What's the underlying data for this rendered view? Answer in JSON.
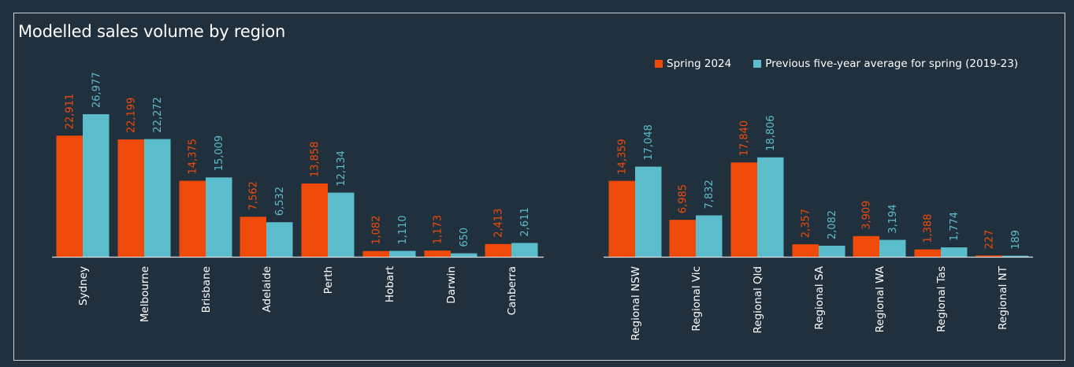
{
  "title": "Modelled sales volume by region",
  "colors": {
    "background": "#21303d",
    "spring_2024": "#f04a0a",
    "five_year_avg": "#5bbccc",
    "axis": "#dfe4e8",
    "text": "#ffffff"
  },
  "legend": {
    "spring_2024": "Spring 2024",
    "five_year_avg": "Previous five-year average for spring (2019-23)"
  },
  "chart_data": {
    "type": "bar",
    "title": "Modelled sales volume by region",
    "legend_position": "top-right",
    "grid": false,
    "categories": [
      "Sydney",
      "Melbourne",
      "Brisbane",
      "Adelaide",
      "Perth",
      "Hobart",
      "Darwin",
      "Canberra",
      "Regional NSW",
      "Regional Vic",
      "Regional Qld",
      "Regional SA",
      "Regional WA",
      "Regional Tas",
      "Regional NT"
    ],
    "series": [
      {
        "name": "Spring 2024",
        "values": [
          22911,
          22199,
          14375,
          7562,
          13858,
          1082,
          1173,
          2413,
          14359,
          6985,
          17840,
          2357,
          3909,
          1388,
          227
        ],
        "labels": [
          "22,911",
          "22,199",
          "14,375",
          "7,562",
          "13,858",
          "1,082",
          "1,173",
          "2,413",
          "14,359",
          "6,985",
          "17,840",
          "2,357",
          "3,909",
          "1,388",
          "227"
        ]
      },
      {
        "name": "Previous five-year average for spring (2019-23)",
        "values": [
          26977,
          22272,
          15009,
          6532,
          12134,
          1110,
          650,
          2611,
          17048,
          7832,
          18806,
          2082,
          3194,
          1774,
          189
        ],
        "labels": [
          "26,977",
          "22,272",
          "15,009",
          "6,532",
          "12,134",
          "1,110",
          "650",
          "2,611",
          "17,048",
          "7,832",
          "18,806",
          "2,082",
          "3,194",
          "1,774",
          "189"
        ]
      }
    ],
    "ylim": [
      0,
      27000
    ]
  }
}
